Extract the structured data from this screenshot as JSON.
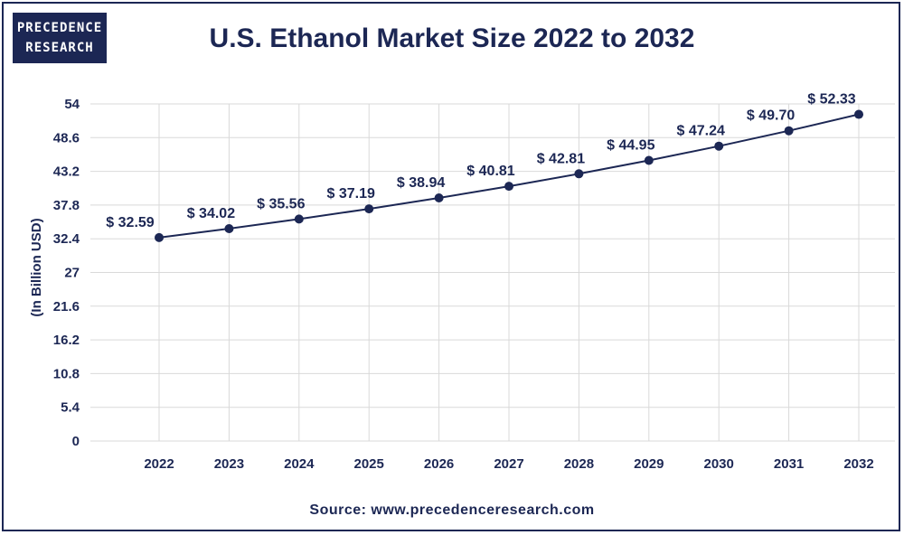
{
  "brand": {
    "logo_line1": "PRECEDENCE",
    "logo_line2": "RESEARCH"
  },
  "source_text": "Source: www.precedenceresearch.com",
  "chart_data": {
    "type": "line",
    "title": "U.S. Ethanol Market Size 2022 to 2032",
    "xlabel": "",
    "ylabel": "(In Billion USD)",
    "categories": [
      "2022",
      "2023",
      "2024",
      "2025",
      "2026",
      "2027",
      "2028",
      "2029",
      "2030",
      "2031",
      "2032"
    ],
    "series": [
      {
        "values": [
          32.59,
          34.02,
          35.56,
          37.19,
          38.94,
          40.81,
          42.81,
          44.95,
          47.24,
          49.7,
          52.33
        ],
        "labels": [
          "$ 32.59",
          "$ 34.02",
          "$ 35.56",
          "$ 37.19",
          "$ 38.94",
          "$ 40.81",
          "$ 42.81",
          "$ 44.95",
          "$ 47.24",
          "$ 49.70",
          "$ 52.33"
        ]
      }
    ],
    "yticks": [
      "0",
      "5.4",
      "10.8",
      "16.2",
      "21.6",
      "27",
      "32.4",
      "37.8",
      "43.2",
      "48.6",
      "54"
    ],
    "ylim": [
      0,
      54
    ],
    "grid": true,
    "legend": "none",
    "colors": {
      "line": "#1c2754",
      "marker": "#1c2754",
      "grid": "#d9d9d9",
      "text": "#1c2754"
    }
  }
}
